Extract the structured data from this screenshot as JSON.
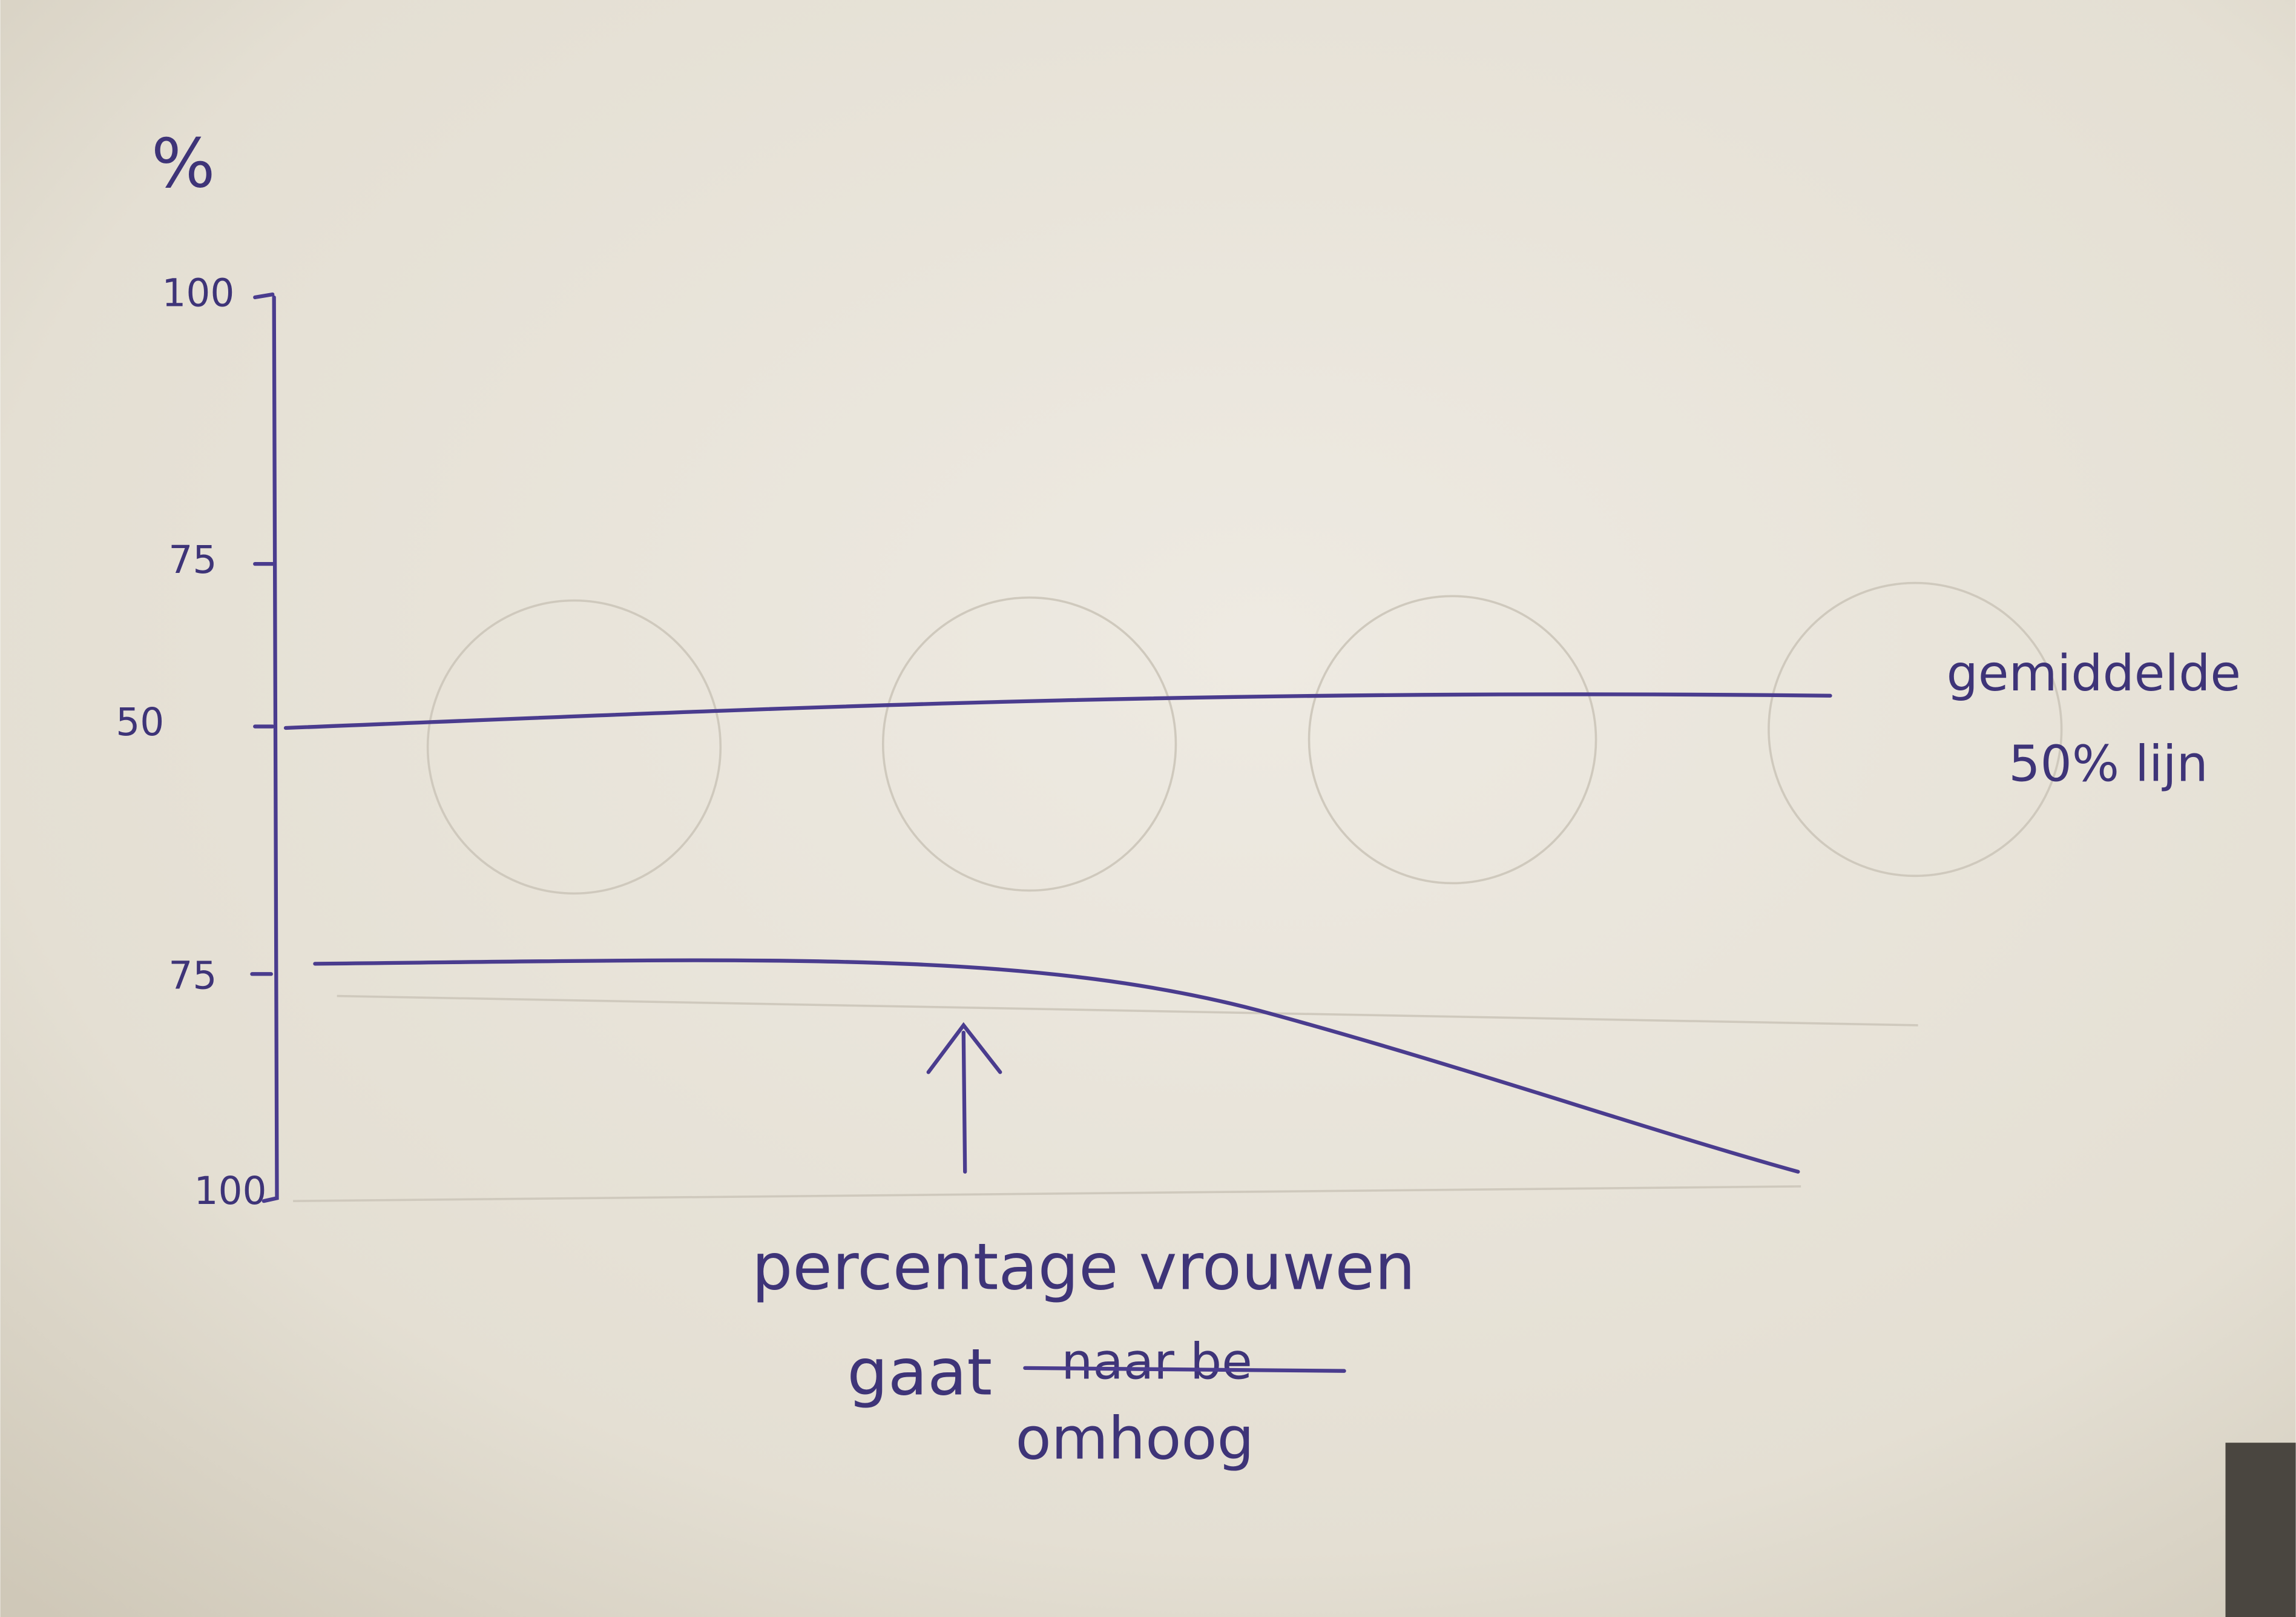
{
  "axis": {
    "unit": "%",
    "ticks": [
      "100",
      "75",
      "50",
      "75",
      "100"
    ]
  },
  "annotations": {
    "average": [
      "gemiddelde",
      "50% lijn"
    ],
    "arrow": {
      "line1": "percentage vrouwen",
      "line2": "gaat",
      "struck": "naar be",
      "line3": "omhoog"
    }
  }
}
